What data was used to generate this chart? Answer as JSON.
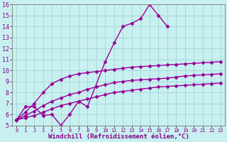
{
  "xlabel": "Windchill (Refroidissement éolien,°C)",
  "background_color": "#c8f0f0",
  "grid_color": "#a8d8d8",
  "line_color": "#990099",
  "xlim": [
    -0.5,
    23.5
  ],
  "ylim": [
    5,
    16
  ],
  "xticks": [
    0,
    1,
    2,
    3,
    4,
    5,
    6,
    7,
    8,
    9,
    10,
    11,
    12,
    13,
    14,
    15,
    16,
    17,
    18,
    19,
    20,
    21,
    22,
    23
  ],
  "yticks": [
    5,
    6,
    7,
    8,
    9,
    10,
    11,
    12,
    13,
    14,
    15,
    16
  ],
  "series": {
    "line1": [
      5.5,
      6.7,
      6.7,
      5.9,
      6.0,
      5.0,
      6.0,
      7.2,
      6.7,
      null,
      10.8,
      12.5,
      14.0,
      14.3,
      14.7,
      16.0,
      15.0,
      14.0,
      null,
      null,
      null,
      null,
      null,
      null
    ],
    "line2": [
      5.5,
      null,
      null,
      null,
      null,
      null,
      null,
      null,
      null,
      null,
      null,
      null,
      null,
      null,
      null,
      null,
      null,
      11.2,
      10.7,
      10.5,
      null,
      null,
      null,
      null
    ],
    "line3": [
      5.5,
      6.2,
      7.0,
      8.0,
      8.8,
      9.2,
      9.5,
      9.7,
      9.8,
      9.9,
      10.0,
      10.1,
      10.2,
      10.3,
      10.35,
      10.4,
      10.45,
      10.5,
      10.55,
      10.6,
      10.65,
      10.7,
      10.75,
      10.8
    ],
    "line4": [
      5.5,
      5.9,
      6.3,
      6.8,
      7.2,
      7.5,
      7.8,
      8.0,
      8.3,
      8.5,
      8.7,
      8.9,
      9.0,
      9.1,
      9.15,
      9.2,
      9.25,
      9.3,
      9.4,
      9.5,
      9.55,
      9.6,
      9.65,
      9.7
    ],
    "line5": [
      5.5,
      5.7,
      5.9,
      6.2,
      6.5,
      6.8,
      7.0,
      7.2,
      7.4,
      7.6,
      7.8,
      8.0,
      8.1,
      8.2,
      8.3,
      8.4,
      8.5,
      8.55,
      8.6,
      8.65,
      8.7,
      8.75,
      8.8,
      8.85
    ]
  },
  "marker": "D",
  "markersize": 2.5,
  "linewidth": 1.0,
  "label_fontsize": 6.5,
  "tick_fontsize": 6
}
